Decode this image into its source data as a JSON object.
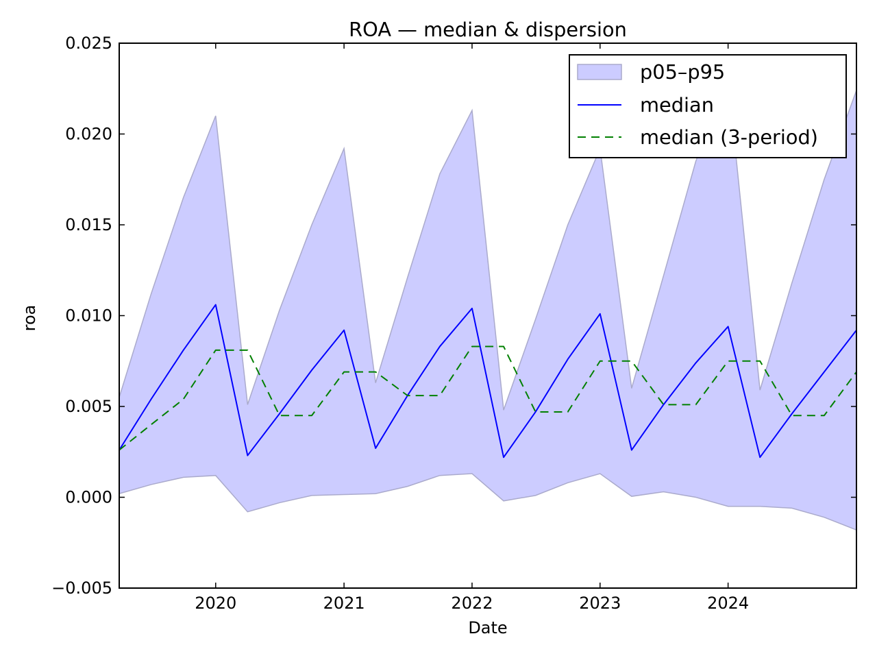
{
  "chart_data": {
    "type": "line",
    "title": "ROA — median & dispersion",
    "xlabel": "Date",
    "ylabel": "roa",
    "x": [
      "2019-04-01",
      "2019-07-01",
      "2019-10-01",
      "2020-01-01",
      "2020-04-01",
      "2020-07-01",
      "2020-10-01",
      "2021-01-01",
      "2021-04-01",
      "2021-07-01",
      "2021-10-01",
      "2022-01-01",
      "2022-04-01",
      "2022-07-01",
      "2022-10-01",
      "2023-01-01",
      "2023-04-01",
      "2023-07-01",
      "2023-10-01",
      "2024-01-01",
      "2024-04-01",
      "2024-07-01",
      "2024-10-01",
      "2025-01-01"
    ],
    "xlim": [
      "2019-04-01",
      "2025-01-01"
    ],
    "xticks": [
      "2020",
      "2021",
      "2022",
      "2023",
      "2024"
    ],
    "xtick_dates": [
      "2020-01-01",
      "2021-01-01",
      "2022-01-01",
      "2023-01-01",
      "2024-01-01"
    ],
    "ylim": [
      -0.005,
      0.025
    ],
    "yticks": [
      -0.005,
      0.0,
      0.005,
      0.01,
      0.015,
      0.02,
      0.025
    ],
    "ytick_labels": [
      "−0.005",
      "0.000",
      "0.005",
      "0.010",
      "0.015",
      "0.020",
      "0.025"
    ],
    "band": {
      "name": "p05–p95",
      "color": "#ccccff",
      "edge_color": "#aaaacc",
      "lower": [
        0.0002,
        0.0007,
        0.0011,
        0.0012,
        -0.0008,
        -0.0003,
        0.0001,
        0.00015,
        0.0002,
        0.0006,
        0.0012,
        0.0013,
        -0.0002,
        0.0001,
        0.0008,
        0.0013,
        5e-05,
        0.0003,
        0.0,
        -0.0005,
        -0.0005,
        -0.0006,
        -0.0011,
        -0.0018
      ],
      "upper": [
        0.0055,
        0.0112,
        0.0165,
        0.021,
        0.0051,
        0.0103,
        0.015,
        0.0192,
        0.0063,
        0.0121,
        0.0178,
        0.0213,
        0.0048,
        0.0098,
        0.015,
        0.0192,
        0.006,
        0.0122,
        0.0185,
        0.023,
        0.0059,
        0.0118,
        0.0175,
        0.0224
      ]
    },
    "series": [
      {
        "name": "median",
        "color": "#0000ff",
        "style": "solid",
        "values": [
          0.0026,
          0.0054,
          0.0081,
          0.0106,
          0.0023,
          0.0046,
          0.007,
          0.0092,
          0.0027,
          0.0056,
          0.0083,
          0.0104,
          0.0022,
          0.0047,
          0.0076,
          0.0101,
          0.0026,
          0.0051,
          0.0074,
          0.0094,
          0.0022,
          0.0046,
          0.0069,
          0.0092
        ]
      },
      {
        "name": "median (3-period)",
        "color": "#008000",
        "style": "dashed",
        "values": [
          0.0026,
          0.004,
          0.0054,
          0.0081,
          0.0081,
          0.0045,
          0.0045,
          0.0069,
          0.0069,
          0.0056,
          0.0056,
          0.0083,
          0.0083,
          0.0047,
          0.0047,
          0.0075,
          0.0075,
          0.0051,
          0.0051,
          0.0075,
          0.0075,
          0.0045,
          0.0045,
          0.0069
        ]
      }
    ],
    "legend": {
      "position": "top-right",
      "entries": [
        "p05–p95",
        "median",
        "median (3-period)"
      ]
    },
    "grid": false
  }
}
